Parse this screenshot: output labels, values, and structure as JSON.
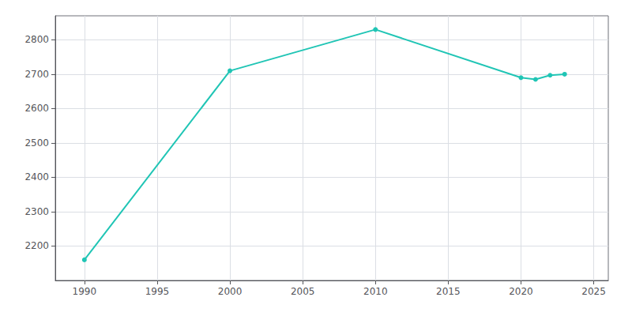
{
  "chart_data": {
    "type": "line",
    "x": [
      1990,
      2000,
      2010,
      2020,
      2021,
      2022,
      2023
    ],
    "values": [
      2160,
      2710,
      2830,
      2690,
      2685,
      2697,
      2700
    ],
    "color": "#20C5B5",
    "marker": "circle",
    "xlim": [
      1988,
      2026
    ],
    "ylim": [
      2100,
      2870
    ],
    "xticks": [
      1990,
      1995,
      2000,
      2005,
      2010,
      2015,
      2020,
      2025
    ],
    "yticks": [
      2200,
      2300,
      2400,
      2500,
      2600,
      2700,
      2800
    ],
    "grid": true
  }
}
